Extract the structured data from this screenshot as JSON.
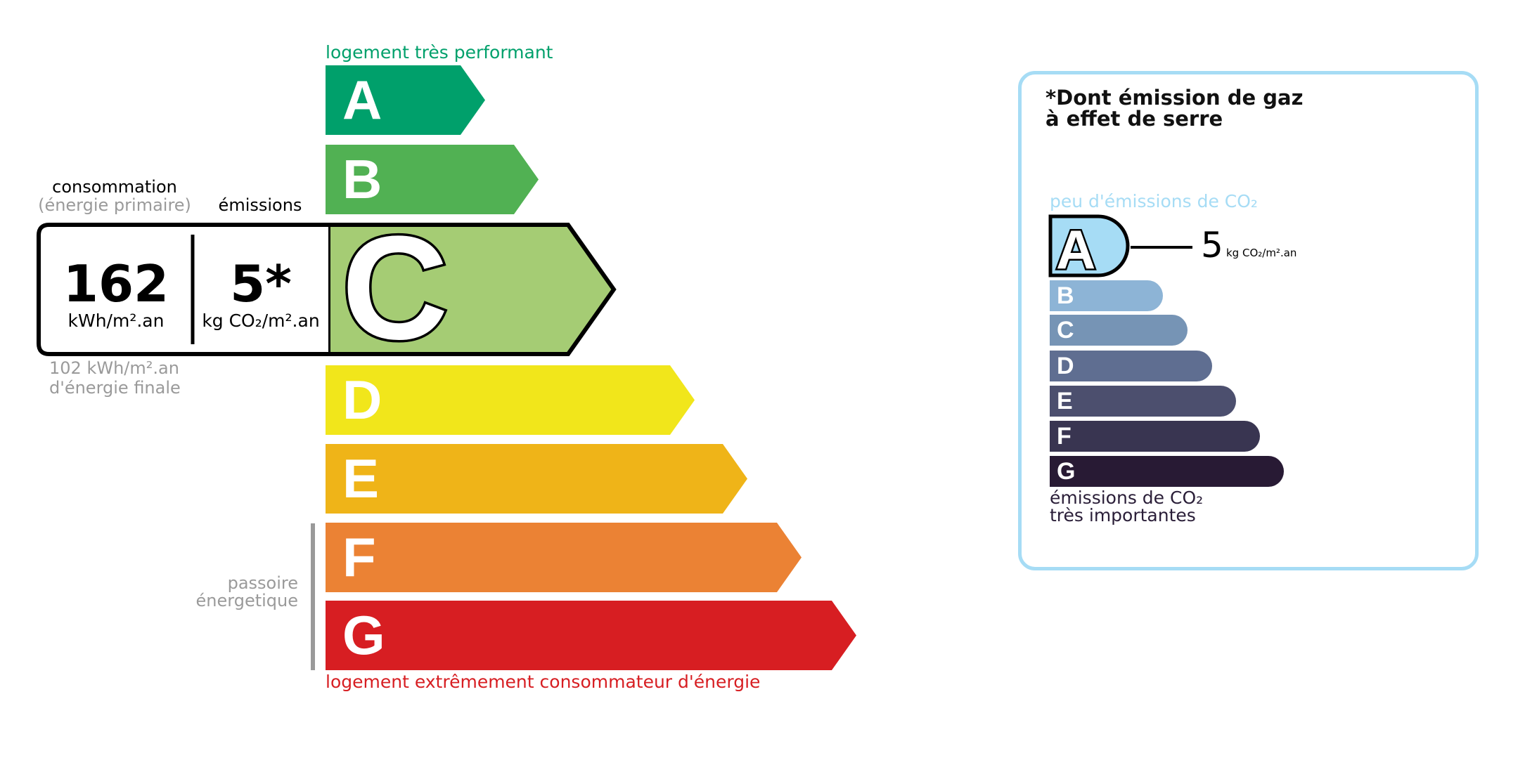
{
  "energy_label": {
    "top_text": "logement très performant",
    "bottom_text": "logement extrêmement consommateur d'énergie",
    "classes": [
      {
        "letter": "A",
        "color": "#00a06b"
      },
      {
        "letter": "B",
        "color": "#51b153"
      },
      {
        "letter": "C",
        "color": "#a5cc74"
      },
      {
        "letter": "D",
        "color": "#f1e61b"
      },
      {
        "letter": "E",
        "color": "#efb418"
      },
      {
        "letter": "F",
        "color": "#eb8234"
      },
      {
        "letter": "G",
        "color": "#d71e22"
      }
    ],
    "current_class": "C",
    "consumption_heading": "consommation",
    "consumption_subheading": "(énergie primaire)",
    "emissions_heading": "émissions",
    "consumption_value": "162",
    "consumption_unit": "kWh/m².an",
    "emissions_value": "5*",
    "emissions_unit": "kg CO₂/m².an",
    "final_energy_line1": "102 kWh/m².an",
    "final_energy_line2": "d'énergie finale",
    "passoire_line1": "passoire",
    "passoire_line2": "énergetique"
  },
  "ges_label": {
    "title_line1": "*Dont émission de gaz",
    "title_line2": "à effet de serre",
    "top_text": "peu d'émissions de CO₂",
    "bottom_line1": "émissions de CO₂",
    "bottom_line2": "très importantes",
    "current_class": "A",
    "value": "5",
    "unit": "kg CO₂/m².an",
    "border_color": "#a6dcf5",
    "classes": [
      {
        "letter": "A",
        "color": "#a6dcf5"
      },
      {
        "letter": "B",
        "color": "#8db4d6"
      },
      {
        "letter": "C",
        "color": "#7694b5"
      },
      {
        "letter": "D",
        "color": "#5f6e91"
      },
      {
        "letter": "E",
        "color": "#4c4f6e"
      },
      {
        "letter": "F",
        "color": "#393551"
      },
      {
        "letter": "G",
        "color": "#281a34"
      }
    ]
  }
}
